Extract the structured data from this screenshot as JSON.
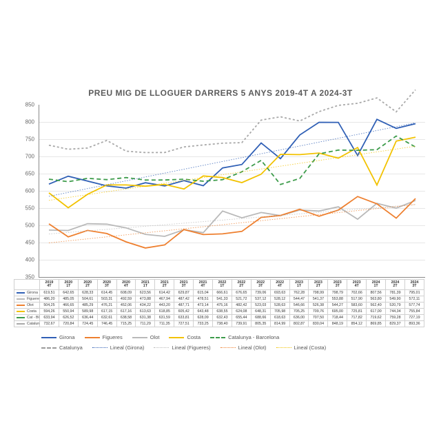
{
  "title": "PREU MIG DE LLOGUER DARRERS 5 ANYS 2019-4T A 2024-3T",
  "chart": {
    "type": "line",
    "ylim": [
      350,
      850
    ],
    "ytick_step": 50,
    "background_color": "#ffffff",
    "grid_color": "#e6e6e6",
    "axis_color": "#888888",
    "label_fontsize": 8,
    "periods": [
      "2019 4T",
      "2020 1T",
      "2020 2T",
      "2020 3T",
      "2020 4T",
      "2021 1T",
      "2021 2T",
      "2021 3T",
      "2021 4T",
      "2022 1T",
      "2022 2T",
      "2022 3T",
      "2022 4T",
      "2023 1T",
      "2023 2T",
      "2023 3T",
      "2023 4T",
      "2024 1T",
      "2024 2T",
      "2024 3T"
    ],
    "series": [
      {
        "key": "girona",
        "label": "Girona",
        "color": "#2f5fb5",
        "width": 2.2,
        "values": [
          619.51,
          642.65,
          628.33,
          614.45,
          608.09,
          623.56,
          614.42,
          629.87,
          615.04,
          666.61,
          676.65,
          739.06,
          693.63,
          762.28,
          798.99,
          798.79,
          702.66,
          807.56,
          781.39,
          795.01
        ]
      },
      {
        "key": "figueres",
        "label": "Figueres",
        "color": "#b9b9b9",
        "width": 1.4,
        "values": [
          486.2,
          485.05,
          504.61,
          503.31,
          492.59,
          473.88,
          467.94,
          487.42,
          478.51,
          541.33,
          521.72,
          537.12,
          528.12,
          544.47,
          541.37,
          553.88,
          517.9,
          563.8,
          549.9,
          572.11
        ]
      },
      {
        "key": "olot",
        "label": "Olot",
        "color": "#ee7f2e",
        "width": 2.0,
        "values": [
          504.25,
          466.65,
          485.29,
          476.21,
          452.06,
          434.22,
          443.2,
          487.71,
          473.14,
          475.16,
          482.42,
          523.03,
          528.63,
          546.66,
          526.38,
          544.27,
          583.6,
          562.4,
          520.79,
          577.74
        ]
      },
      {
        "key": "costa",
        "label": "Costa",
        "color": "#f2c200",
        "width": 2.0,
        "values": [
          594.26,
          550.94,
          589.98,
          617.15,
          617.16,
          613.63,
          618.85,
          605.42,
          643.48,
          638.55,
          624.08,
          648.31,
          705.98,
          705.25,
          709.76,
          695.0,
          725.81,
          617.0,
          744.34,
          755.84
        ]
      },
      {
        "key": "catbcn",
        "label": "Cat - BCN",
        "color": "#3c9b4a",
        "width": 2.0,
        "dash": "6,4",
        "values": [
          633.94,
          626.52,
          636.44,
          632.61,
          638.58,
          631.38,
          631.59,
          633.81,
          628.09,
          632.43,
          655.44,
          688.66,
          618.63,
          636.0,
          707.5,
          718.44,
          717.82,
          719.62,
          759.28,
          727.19
        ]
      },
      {
        "key": "catalunya",
        "label": "Catalunya",
        "color": "#a8a8a8",
        "width": 1.6,
        "dash": "3,3",
        "values": [
          732.67,
          720.84,
          724.45,
          746.45,
          715.25,
          711.29,
          711.35,
          727.51,
          733.25,
          738.4,
          739.91,
          805.35,
          814.99,
          802.87,
          830.04,
          848.19,
          854.12,
          869.85,
          829.37,
          893.36
        ]
      }
    ],
    "trends": [
      {
        "of": "girona",
        "color": "#2f5fb5"
      },
      {
        "of": "figueres",
        "color": "#b9b9b9"
      },
      {
        "of": "olot",
        "color": "#ee7f2e"
      },
      {
        "of": "costa",
        "color": "#f2c200"
      }
    ]
  },
  "legend": {
    "row1": [
      {
        "label": "Girona",
        "color": "#2f5fb5",
        "style": "solid",
        "w": 3
      },
      {
        "label": "Figueres",
        "color": "#ee7f2e",
        "style": "solid",
        "w": 3
      },
      {
        "label": "Olot",
        "color": "#b9b9b9",
        "style": "solid",
        "w": 3
      },
      {
        "label": "Costa",
        "color": "#f2c200",
        "style": "solid",
        "w": 3
      },
      {
        "label": "Catalunya - Barcelona",
        "color": "#3c9b4a",
        "style": "dash",
        "w": 3
      }
    ],
    "row2": [
      {
        "label": "Catalunya",
        "color": "#9a9a9a",
        "style": "dash",
        "w": 3
      },
      {
        "label": "Lineal (Girona)",
        "color": "#2f5fb5",
        "style": "dot",
        "w": 1
      },
      {
        "label": "Lineal (Figueres)",
        "color": "#b9b9b9",
        "style": "dot",
        "w": 1
      },
      {
        "label": "Lineal (Olot)",
        "color": "#ee7f2e",
        "style": "dot",
        "w": 1
      },
      {
        "label": "Lineal (Costa)",
        "color": "#f2c200",
        "style": "dot",
        "w": 1
      }
    ]
  }
}
